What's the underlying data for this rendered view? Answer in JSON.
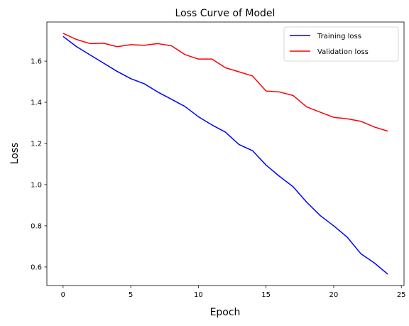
{
  "chart_data": {
    "type": "line",
    "title": "Loss Curve of Model",
    "xlabel": "Epoch",
    "ylabel": "Loss",
    "xlim": [
      -1.2,
      25.2
    ],
    "ylim": [
      0.51,
      1.79
    ],
    "x_ticks": [
      0,
      5,
      10,
      15,
      20,
      25
    ],
    "y_ticks": [
      0.6,
      0.8,
      1.0,
      1.2,
      1.4,
      1.6
    ],
    "grid": false,
    "legend_position": "top-right",
    "x": [
      0,
      1,
      2,
      3,
      4,
      5,
      6,
      7,
      8,
      9,
      10,
      11,
      12,
      13,
      14,
      15,
      16,
      17,
      18,
      19,
      20,
      21,
      22,
      23,
      24
    ],
    "series": [
      {
        "name": "Training loss",
        "color": "#0000ff",
        "values": [
          1.72,
          1.67,
          1.63,
          1.59,
          1.55,
          1.515,
          1.49,
          1.45,
          1.415,
          1.38,
          1.33,
          1.29,
          1.255,
          1.195,
          1.165,
          1.095,
          1.04,
          0.99,
          0.915,
          0.85,
          0.8,
          0.745,
          0.665,
          0.62,
          0.565
        ]
      },
      {
        "name": "Validation loss",
        "color": "#ff0000",
        "values": [
          1.735,
          1.705,
          1.685,
          1.687,
          1.67,
          1.68,
          1.677,
          1.685,
          1.675,
          1.632,
          1.61,
          1.61,
          1.568,
          1.548,
          1.528,
          1.455,
          1.45,
          1.433,
          1.378,
          1.352,
          1.327,
          1.32,
          1.308,
          1.28,
          1.26
        ]
      }
    ]
  }
}
